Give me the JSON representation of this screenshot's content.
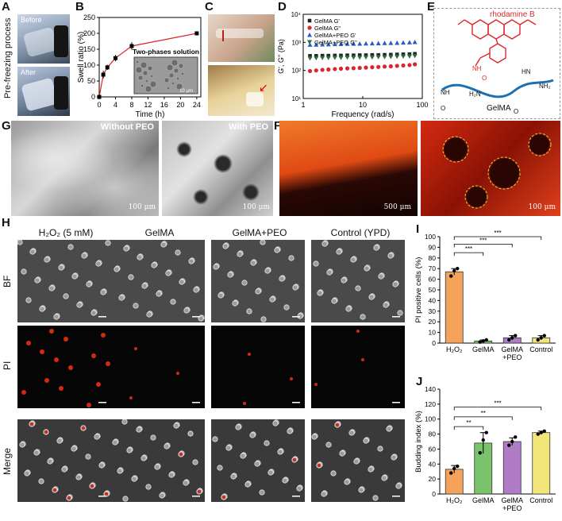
{
  "panels": {
    "A": "A",
    "B": "B",
    "C": "C",
    "D": "D",
    "E": "E",
    "G": "G",
    "F": "F",
    "H": "H",
    "I": "I",
    "J": "J"
  },
  "panel_a": {
    "side_label": "Pre-freezing process",
    "before": "Before",
    "after": "After"
  },
  "panel_b": {
    "inset_title": "Two-phases solution",
    "inset_scale": "10 μm"
  },
  "panel_e": {
    "dye": "rhodamine B",
    "polymer": "GelMA",
    "groups": [
      "NH",
      "H₂N",
      "HN",
      "NH₂",
      "O",
      "O",
      "NH",
      "O"
    ]
  },
  "panel_g": {
    "left_title": "Without PEO",
    "right_title": "With PEO",
    "left_scale": "100 μm",
    "right_scale": "100 μm"
  },
  "panel_f": {
    "left_scale": "500 μm",
    "right_scale": "100 μm"
  },
  "panel_h": {
    "columns": [
      "H₂O₂ (5 mM)",
      "GelMA",
      "GelMA+PEO",
      "Control (YPD)"
    ],
    "rows": [
      "BF",
      "PI",
      "Merge"
    ]
  },
  "colors": {
    "h2o2": "#f5a25a",
    "gelma": "#7ac36a",
    "gelma_peo": "#b07cc6",
    "control": "#f2e67a",
    "series_gelma_gp": "#222222",
    "series_gelma_gpp": "#d9262e",
    "series_peo_gp": "#2a5cc8",
    "series_peo_gpp": "#2f6b3a",
    "fluor": "#d42a10"
  },
  "chart_data": [
    {
      "id": "B",
      "type": "line",
      "xlabel": "Time (h)",
      "ylabel": "Swell ratio (%)",
      "xlim": [
        0,
        25
      ],
      "ylim": [
        0,
        250
      ],
      "xticks": [
        0,
        4,
        8,
        12,
        16,
        20,
        24
      ],
      "yticks": [
        0,
        50,
        100,
        150,
        200,
        250
      ],
      "x": [
        0,
        1,
        2,
        4,
        8,
        24
      ],
      "y": [
        0,
        70,
        93,
        122,
        160,
        200
      ],
      "err": [
        0,
        12,
        8,
        10,
        12,
        4
      ]
    },
    {
      "id": "D",
      "type": "scatter",
      "xlabel": "Frequency (rad/s)",
      "ylabel": "G', G'' (Pa)",
      "xscale": "log",
      "yscale": "log",
      "xlim": [
        1,
        100
      ],
      "ylim": [
        10,
        10000
      ],
      "xtick_labels": [
        "1",
        "10",
        "100"
      ],
      "ytick_labels": [
        "10¹",
        "10²",
        "10³",
        "10⁴"
      ],
      "legend": [
        "GelMA G'",
        "GelMA G''",
        "GelMA+PEO G'",
        "GelMA+PEO G''"
      ],
      "x": [
        1.3,
        1.65,
        2.1,
        2.65,
        3.4,
        4.3,
        5.5,
        7.0,
        8.9,
        11.3,
        14.4,
        18.3,
        23.3,
        29.6,
        37.7,
        47.9,
        61,
        75
      ],
      "series": [
        {
          "name": "GelMA G'",
          "values": [
            330,
            330,
            335,
            335,
            340,
            340,
            345,
            345,
            350,
            350,
            355,
            355,
            360,
            365,
            370,
            375,
            380,
            390
          ]
        },
        {
          "name": "GelMA G''",
          "values": [
            95,
            100,
            105,
            108,
            112,
            115,
            118,
            120,
            123,
            126,
            130,
            133,
            137,
            140,
            145,
            150,
            155,
            165
          ]
        },
        {
          "name": "GelMA+PEO G'",
          "values": [
            820,
            830,
            840,
            850,
            860,
            870,
            880,
            890,
            900,
            910,
            920,
            930,
            940,
            950,
            960,
            980,
            1000,
            1020
          ]
        },
        {
          "name": "GelMA+PEO G''",
          "values": [
            270,
            275,
            280,
            280,
            285,
            285,
            290,
            290,
            290,
            295,
            295,
            300,
            300,
            305,
            310,
            315,
            320,
            330
          ]
        }
      ]
    },
    {
      "id": "I",
      "type": "bar",
      "ylabel": "PI positive cells (%)",
      "ylim": [
        0,
        100
      ],
      "yticks": [
        0,
        10,
        20,
        30,
        40,
        50,
        60,
        70,
        80,
        90,
        100
      ],
      "categories": [
        "H₂O₂",
        "GelMA",
        "GelMA\n+PEO",
        "Control"
      ],
      "values": [
        67,
        2,
        5,
        5
      ],
      "err": [
        3,
        1,
        2,
        2
      ],
      "points": [
        [
          63,
          68,
          70
        ],
        [
          1,
          2,
          3
        ],
        [
          3,
          5,
          7
        ],
        [
          3,
          5,
          7
        ]
      ],
      "significance": [
        "***",
        "***",
        "***"
      ]
    },
    {
      "id": "J",
      "type": "bar",
      "ylabel": "Budding index (%)",
      "ylim": [
        0,
        140
      ],
      "yticks": [
        0,
        20,
        40,
        60,
        80,
        100,
        120,
        140
      ],
      "categories": [
        "H₂O₂",
        "GelMA",
        "GelMA\n+PEO",
        "Control"
      ],
      "values": [
        33,
        68,
        70,
        82
      ],
      "err": [
        5,
        14,
        5,
        2
      ],
      "points": [
        [
          28,
          34,
          37
        ],
        [
          55,
          72,
          82
        ],
        [
          65,
          70,
          76
        ],
        [
          80,
          82,
          84
        ]
      ],
      "significance": [
        "**",
        "**",
        "***"
      ]
    }
  ]
}
